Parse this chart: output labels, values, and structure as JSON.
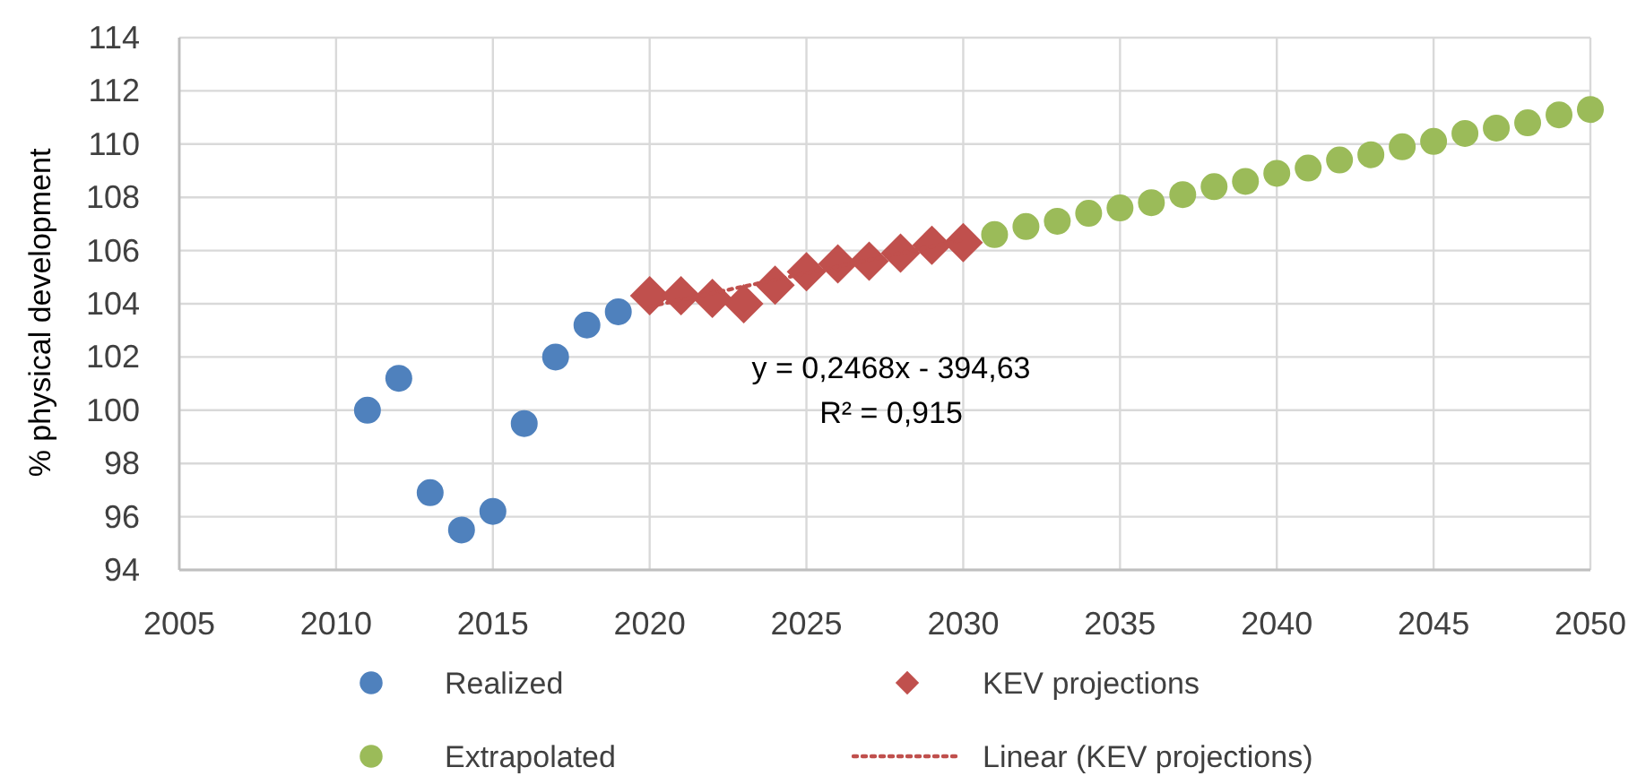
{
  "chart_data": {
    "type": "scatter",
    "ylabel": "% physical development",
    "xlim": [
      2005,
      2050
    ],
    "ylim": [
      94,
      114
    ],
    "xticks": [
      2005,
      2010,
      2015,
      2020,
      2025,
      2030,
      2035,
      2040,
      2045,
      2050
    ],
    "yticks": [
      94,
      96,
      98,
      100,
      102,
      104,
      106,
      108,
      110,
      112,
      114
    ],
    "grid": true,
    "legend": "bottom",
    "annotations": [
      "y = 0,2468x - 394,63",
      "R² = 0,915"
    ],
    "series": [
      {
        "name": "Realized",
        "color": "#4f81bd",
        "marker": "circle",
        "x": [
          2011,
          2012,
          2013,
          2014,
          2015,
          2016,
          2017,
          2018,
          2019
        ],
        "values": [
          100.0,
          101.2,
          96.9,
          95.5,
          96.2,
          99.5,
          102.0,
          103.2,
          103.7
        ]
      },
      {
        "name": "KEV projections",
        "color": "#c0504d",
        "marker": "diamond",
        "x": [
          2020,
          2021,
          2022,
          2023,
          2024,
          2025,
          2026,
          2027,
          2028,
          2029,
          2030
        ],
        "values": [
          104.3,
          104.3,
          104.2,
          104.0,
          104.7,
          105.2,
          105.5,
          105.6,
          105.9,
          106.2,
          106.3
        ]
      },
      {
        "name": "Extrapolated",
        "color": "#9bbb59",
        "marker": "circle",
        "x": [
          2031,
          2032,
          2033,
          2034,
          2035,
          2036,
          2037,
          2038,
          2039,
          2040,
          2041,
          2042,
          2043,
          2044,
          2045,
          2046,
          2047,
          2048,
          2049,
          2050
        ],
        "values": [
          106.6,
          106.9,
          107.1,
          107.4,
          107.6,
          107.8,
          108.1,
          108.4,
          108.6,
          108.9,
          109.1,
          109.4,
          109.6,
          109.9,
          110.1,
          110.4,
          110.6,
          110.8,
          111.1,
          111.3
        ]
      },
      {
        "name": "Linear (KEV projections)",
        "type": "line",
        "color": "#c0504d",
        "line_style": "dotted",
        "marker": "none",
        "x": [
          2020,
          2030
        ],
        "values": [
          103.9,
          106.4
        ]
      }
    ]
  }
}
